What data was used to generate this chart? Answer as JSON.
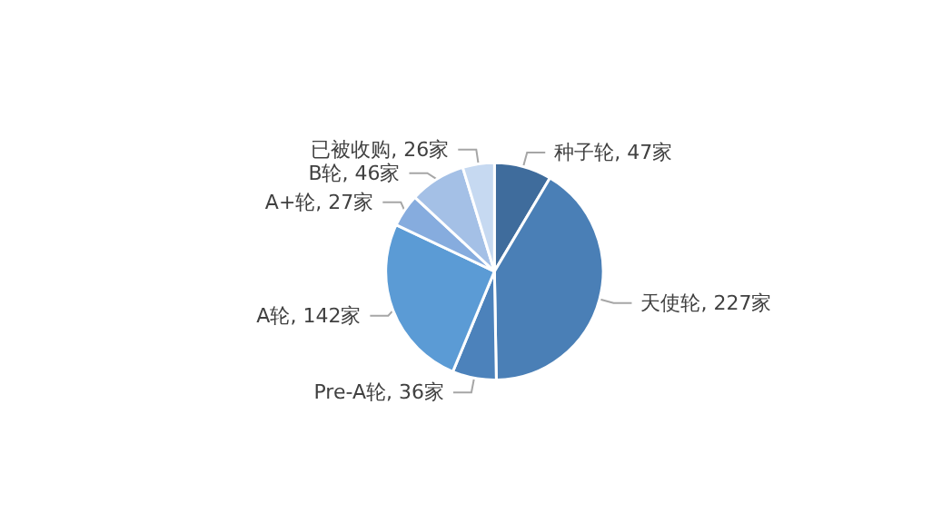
{
  "chart_data": {
    "type": "pie",
    "categories": [
      "种子轮",
      "天使轮",
      "Pre-A轮",
      "A轮",
      "A+轮",
      "B轮",
      "已被收购"
    ],
    "values": [
      47,
      227,
      36,
      142,
      27,
      46,
      26
    ],
    "value_labels": [
      "47家",
      "227家",
      "36家",
      "142家",
      "27家",
      "46家",
      "26家"
    ],
    "colors": [
      "#3f6c9c",
      "#4a7fb6",
      "#4c82bb",
      "#5b9bd5",
      "#86acde",
      "#a4c0e6",
      "#c6d9f1"
    ],
    "legend": false
  }
}
